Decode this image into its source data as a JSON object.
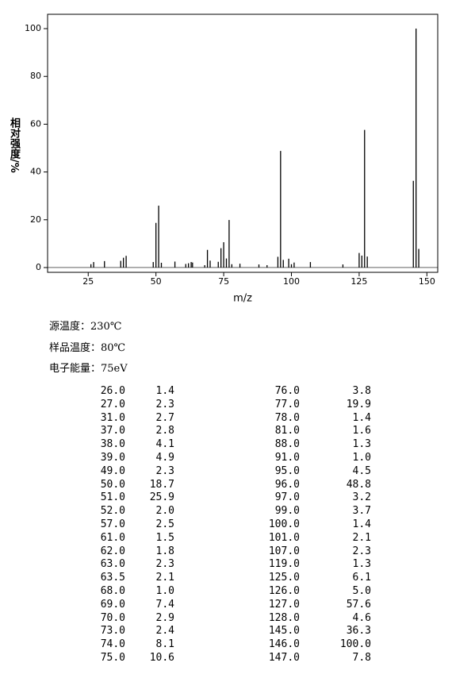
{
  "chart_data": {
    "type": "bar",
    "xlabel": "m/z",
    "ylabel": "相对强度/%",
    "x": [
      26,
      27,
      31,
      37,
      38,
      39,
      49,
      50,
      51,
      52,
      57,
      61,
      62,
      63,
      63.5,
      68,
      69,
      70,
      73,
      74,
      75,
      76,
      77,
      78,
      81,
      88,
      91,
      95,
      96,
      97,
      99,
      100,
      101,
      107,
      119,
      125,
      126,
      127,
      128,
      145,
      146,
      147
    ],
    "values": [
      1.4,
      2.3,
      2.7,
      2.8,
      4.1,
      4.9,
      2.3,
      18.7,
      25.9,
      2.0,
      2.5,
      1.5,
      1.8,
      2.3,
      2.1,
      1.0,
      7.4,
      2.9,
      2.4,
      8.1,
      10.6,
      3.8,
      19.9,
      1.4,
      1.6,
      1.3,
      1.0,
      4.5,
      48.8,
      3.2,
      3.7,
      1.4,
      2.1,
      2.3,
      1.3,
      6.1,
      5.0,
      57.6,
      4.6,
      36.3,
      100.0,
      7.8
    ],
    "color": "#000000",
    "xlim": [
      10,
      154
    ],
    "xticks": [
      25,
      50,
      75,
      100,
      125,
      150
    ],
    "ylim": [
      -2,
      106
    ],
    "yticks": [
      0,
      20,
      40,
      60,
      80,
      100
    ]
  },
  "conditions": [
    "源温度：230℃",
    "样品温度：80℃",
    "电子能量：75eV"
  ],
  "table": {
    "rows": [
      [
        "26.0",
        "1.4",
        "76.0",
        "3.8"
      ],
      [
        "27.0",
        "2.3",
        "77.0",
        "19.9"
      ],
      [
        "31.0",
        "2.7",
        "78.0",
        "1.4"
      ],
      [
        "37.0",
        "2.8",
        "81.0",
        "1.6"
      ],
      [
        "38.0",
        "4.1",
        "88.0",
        "1.3"
      ],
      [
        "39.0",
        "4.9",
        "91.0",
        "1.0"
      ],
      [
        "49.0",
        "2.3",
        "95.0",
        "4.5"
      ],
      [
        "50.0",
        "18.7",
        "96.0",
        "48.8"
      ],
      [
        "51.0",
        "25.9",
        "97.0",
        "3.2"
      ],
      [
        "52.0",
        "2.0",
        "99.0",
        "3.7"
      ],
      [
        "57.0",
        "2.5",
        "100.0",
        "1.4"
      ],
      [
        "61.0",
        "1.5",
        "101.0",
        "2.1"
      ],
      [
        "62.0",
        "1.8",
        "107.0",
        "2.3"
      ],
      [
        "63.0",
        "2.3",
        "119.0",
        "1.3"
      ],
      [
        "63.5",
        "2.1",
        "125.0",
        "6.1"
      ],
      [
        "68.0",
        "1.0",
        "126.0",
        "5.0"
      ],
      [
        "69.0",
        "7.4",
        "127.0",
        "57.6"
      ],
      [
        "70.0",
        "2.9",
        "128.0",
        "4.6"
      ],
      [
        "73.0",
        "2.4",
        "145.0",
        "36.3"
      ],
      [
        "74.0",
        "8.1",
        "146.0",
        "100.0"
      ],
      [
        "75.0",
        "10.6",
        "147.0",
        "7.8"
      ]
    ]
  }
}
